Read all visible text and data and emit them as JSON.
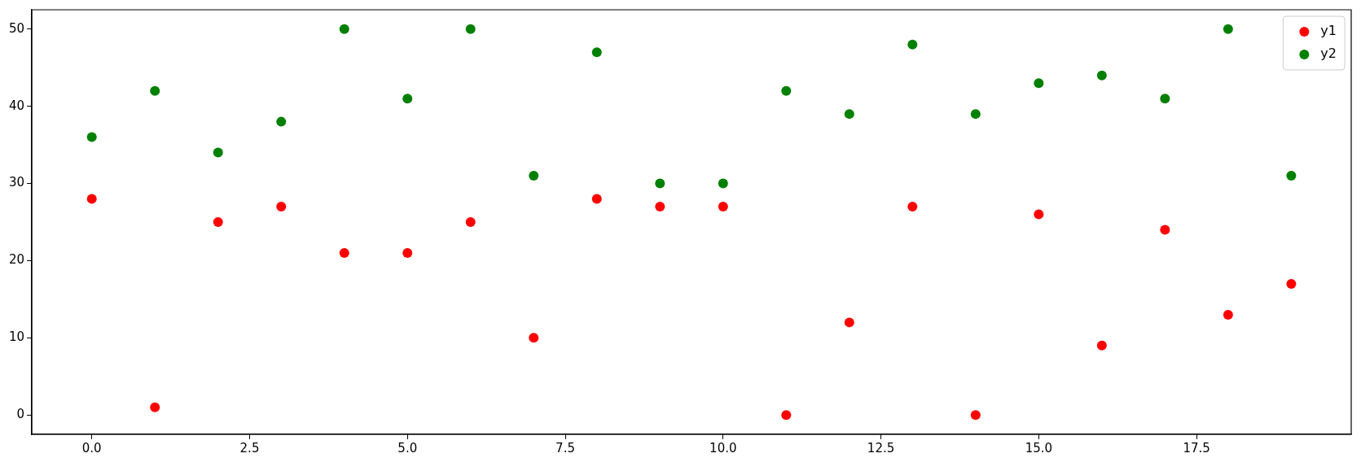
{
  "chart_data": {
    "type": "scatter",
    "x": [
      0,
      1,
      2,
      3,
      4,
      5,
      6,
      7,
      8,
      9,
      10,
      11,
      12,
      13,
      14,
      15,
      16,
      17,
      18,
      19
    ],
    "series": [
      {
        "name": "y1",
        "color": "#ff0000",
        "values": [
          28,
          1,
          25,
          27,
          21,
          21,
          25,
          10,
          28,
          27,
          27,
          0,
          12,
          27,
          0,
          26,
          9,
          24,
          13,
          17
        ]
      },
      {
        "name": "y2",
        "color": "#008000",
        "values": [
          36,
          42,
          34,
          38,
          50,
          41,
          50,
          31,
          47,
          30,
          30,
          42,
          39,
          48,
          39,
          43,
          44,
          41,
          50,
          31
        ]
      }
    ],
    "xlim": [
      -0.95,
      19.95
    ],
    "xticks": [
      {
        "value": 0,
        "label": "0.0"
      },
      {
        "value": 2.5,
        "label": "2.5"
      },
      {
        "value": 5,
        "label": "5.0"
      },
      {
        "value": 7.5,
        "label": "7.5"
      },
      {
        "value": 10,
        "label": "10.0"
      },
      {
        "value": 12.5,
        "label": "12.5"
      },
      {
        "value": 15,
        "label": "15.0"
      },
      {
        "value": 17.5,
        "label": "17.5"
      }
    ],
    "ylim": [
      -2.5,
      52.5
    ],
    "yticks": [
      0,
      10,
      20,
      30,
      40,
      50
    ],
    "marker": "circle",
    "legend": "top right",
    "grid": false
  }
}
